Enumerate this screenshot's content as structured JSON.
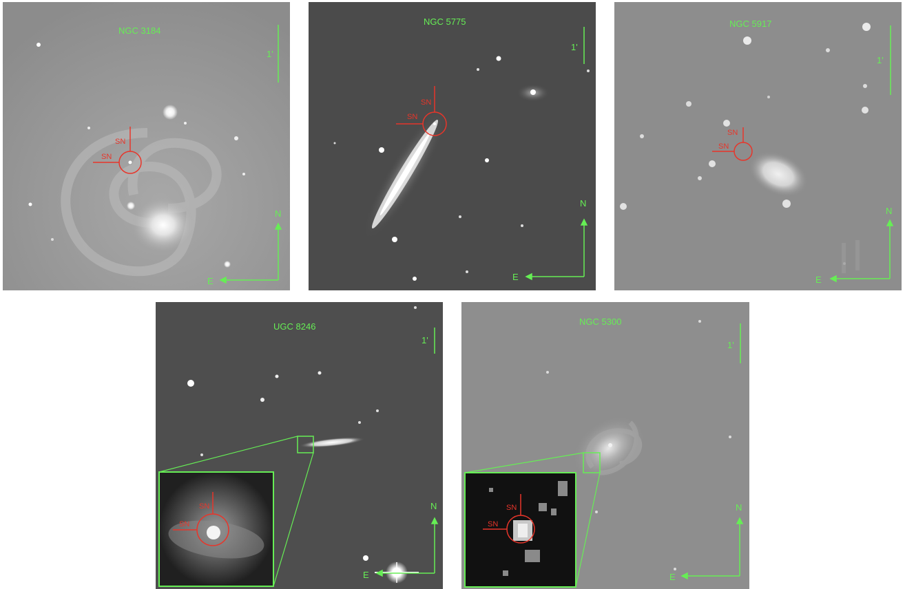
{
  "figure": {
    "panels": [
      {
        "id": "p1",
        "galaxy": "NGC 3184",
        "scale_label": "1'",
        "north_label": "N",
        "east_label": "E",
        "sn_label_1": "SN",
        "sn_label_2": "SN"
      },
      {
        "id": "p2",
        "galaxy": "NGC 5775",
        "scale_label": "1'",
        "north_label": "N",
        "east_label": "E",
        "sn_label_1": "SN",
        "sn_label_2": "SN"
      },
      {
        "id": "p3",
        "galaxy": "NGC 5917",
        "scale_label": "1'",
        "north_label": "N",
        "east_label": "E",
        "sn_label_1": "SN",
        "sn_label_2": "SN"
      },
      {
        "id": "p4",
        "galaxy": "UGC 8246",
        "scale_label": "1'",
        "north_label": "N",
        "east_label": "E",
        "sn_label_1": "SN",
        "sn_label_2": "SN"
      },
      {
        "id": "p5",
        "galaxy": "NGC 5300",
        "scale_label": "1'",
        "north_label": "N",
        "east_label": "E",
        "sn_label_1": "SN",
        "sn_label_2": "SN"
      }
    ],
    "colors": {
      "annotation": "#66ee55",
      "marker": "#e8352a",
      "sky_dark": "#4a4a4a",
      "sky_light": "#9a9a9a"
    }
  }
}
